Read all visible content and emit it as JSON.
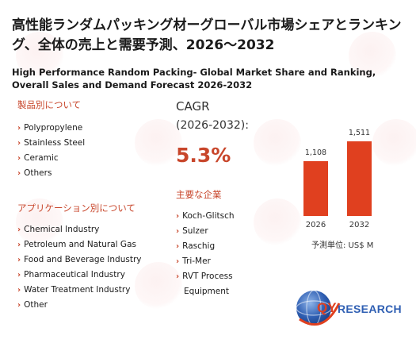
{
  "title": {
    "jp": "高性能ランダムパッキング材ーグローバル市場シェアとランキング、全体の売上と需要予測、2026～2032",
    "en": "High Performance Random Packing- Global Market Share and Ranking, Overall Sales and Demand Forecast 2026-2032"
  },
  "product_section": {
    "heading": "製品別について",
    "items": [
      "Polypropylene",
      "Stainless Steel",
      "Ceramic",
      "Others"
    ]
  },
  "application_section": {
    "heading": "アプリケーション別について",
    "items": [
      "Chemical Industry",
      "Petroleum and Natural Gas",
      "Food and Beverage Industry",
      "Pharmaceutical Industry",
      "Water Treatment Industry",
      "Other"
    ]
  },
  "cagr": {
    "label": "CAGR",
    "range": "(2026-2032):",
    "value": "5.3%"
  },
  "companies_section": {
    "heading": "主要な企業",
    "items": [
      "Koch-Glitsch",
      "Sulzer",
      "Raschig",
      "Tri-Mer",
      "RVT Process",
      "Equipment"
    ]
  },
  "chart_data": {
    "type": "bar",
    "categories": [
      "2026",
      "2032"
    ],
    "values": [
      1108,
      1511
    ],
    "value_labels": [
      "1,108",
      "1,511"
    ],
    "ylim": [
      0,
      1600
    ],
    "bar_color": "#e0401f"
  },
  "unit_label": "予測単位:  US$ M",
  "logo": {
    "text_qy": "QY",
    "text_research": "RESEARCH"
  },
  "colors": {
    "accent": "#c8462b"
  }
}
